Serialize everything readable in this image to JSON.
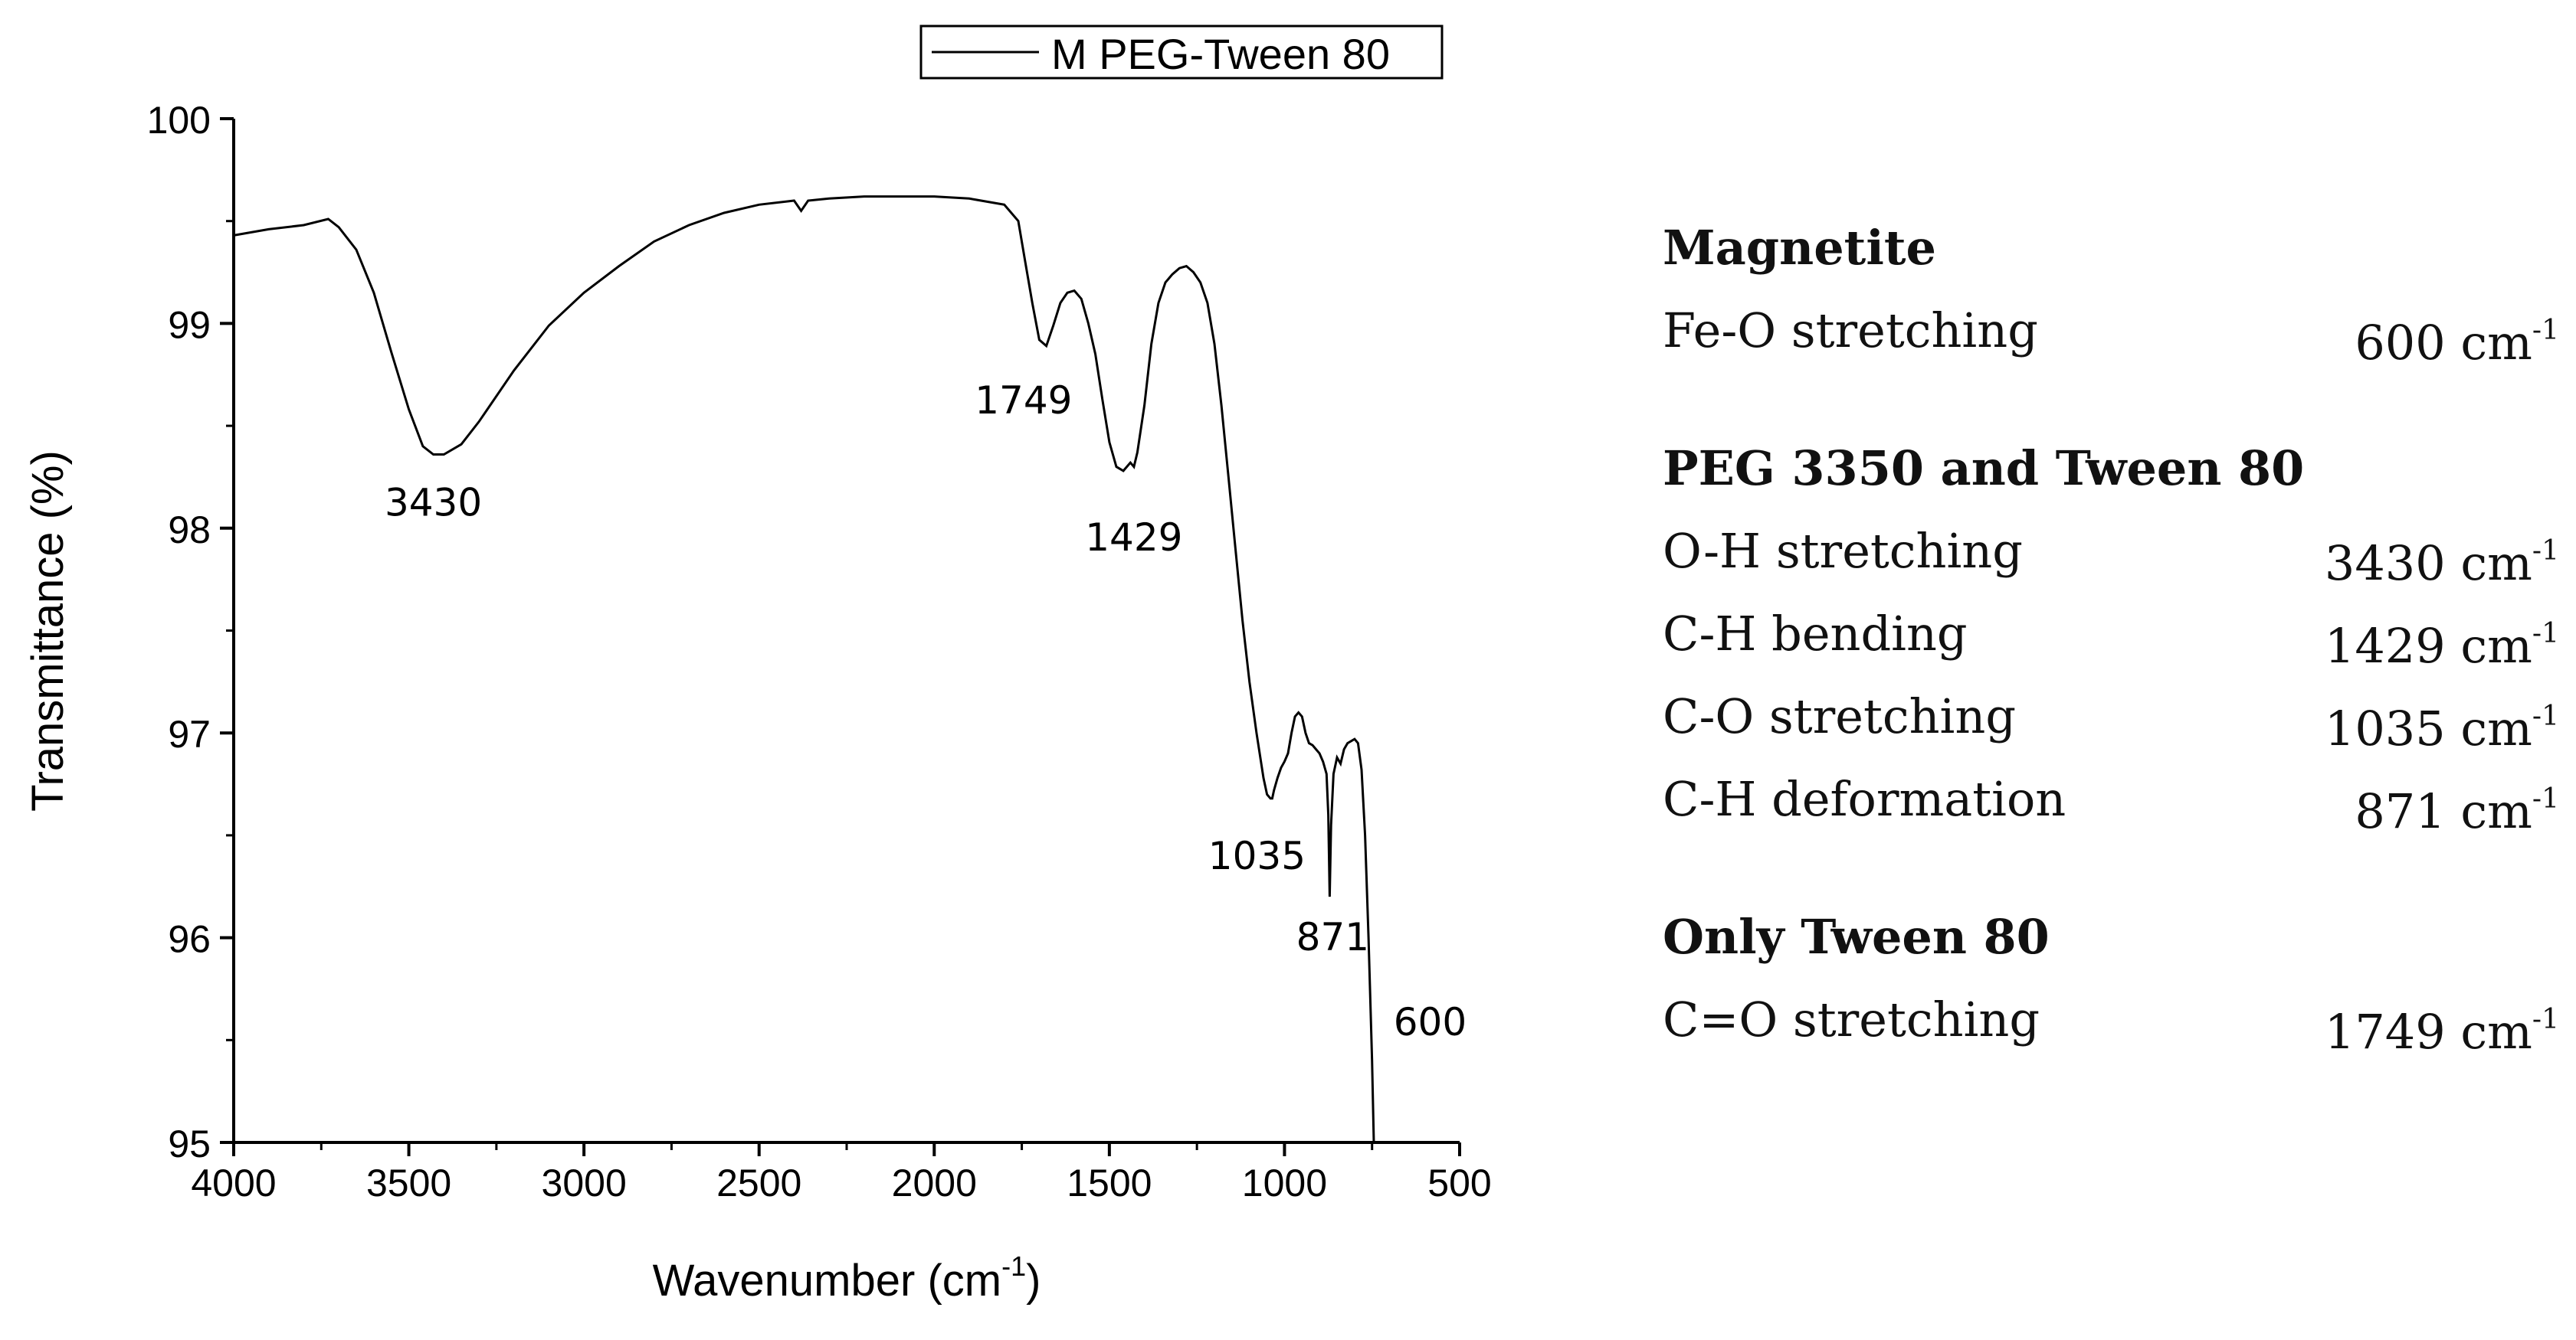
{
  "chart_data": {
    "type": "line",
    "xlabel": "Wavenumber (cm",
    "xlabel_sup": "-1",
    "xlabel_suffix": ")",
    "ylabel": "Transmittance (%)",
    "xlim": [
      4000,
      500
    ],
    "ylim": [
      95,
      100
    ],
    "xticks": [
      4000,
      3500,
      3000,
      2500,
      2000,
      1500,
      1000,
      500
    ],
    "yticks": [
      95,
      96,
      97,
      98,
      99,
      100
    ],
    "legend": "M PEG-Tween 80",
    "series": [
      {
        "name": "M PEG-Tween 80",
        "x": [
          4000,
          3900,
          3800,
          3730,
          3700,
          3650,
          3600,
          3550,
          3500,
          3460,
          3430,
          3400,
          3350,
          3300,
          3200,
          3100,
          3000,
          2900,
          2800,
          2700,
          2600,
          2500,
          2400,
          2380,
          2360,
          2300,
          2200,
          2100,
          2000,
          1900,
          1800,
          1760,
          1740,
          1720,
          1700,
          1680,
          1660,
          1640,
          1620,
          1600,
          1580,
          1560,
          1540,
          1520,
          1500,
          1480,
          1460,
          1440,
          1430,
          1420,
          1400,
          1380,
          1360,
          1340,
          1320,
          1300,
          1280,
          1260,
          1240,
          1220,
          1200,
          1180,
          1160,
          1140,
          1120,
          1100,
          1080,
          1060,
          1050,
          1040,
          1035,
          1030,
          1020,
          1010,
          1000,
          990,
          980,
          970,
          960,
          950,
          940,
          930,
          920,
          910,
          900,
          890,
          880,
          875,
          871,
          867,
          860,
          850,
          840,
          830,
          820,
          800,
          790,
          780,
          770,
          760,
          750,
          745
        ],
        "y": [
          99.43,
          99.46,
          99.48,
          99.51,
          99.47,
          99.36,
          99.15,
          98.86,
          98.58,
          98.4,
          98.36,
          98.36,
          98.41,
          98.52,
          98.77,
          98.99,
          99.15,
          99.28,
          99.4,
          99.48,
          99.54,
          99.58,
          99.6,
          99.55,
          99.6,
          99.61,
          99.62,
          99.62,
          99.62,
          99.61,
          99.58,
          99.5,
          99.3,
          99.1,
          98.92,
          98.89,
          98.99,
          99.1,
          99.15,
          99.16,
          99.12,
          99.0,
          98.85,
          98.63,
          98.42,
          98.3,
          98.28,
          98.32,
          98.3,
          98.37,
          98.6,
          98.9,
          99.1,
          99.2,
          99.24,
          99.27,
          99.28,
          99.25,
          99.2,
          99.1,
          98.9,
          98.6,
          98.25,
          97.9,
          97.55,
          97.25,
          97.0,
          96.78,
          96.7,
          96.68,
          96.68,
          96.72,
          96.78,
          96.83,
          96.86,
          96.9,
          97.0,
          97.08,
          97.1,
          97.08,
          97.0,
          96.95,
          96.94,
          96.92,
          96.9,
          96.86,
          96.8,
          96.6,
          96.2,
          96.55,
          96.8,
          96.88,
          96.85,
          96.92,
          96.95,
          96.97,
          96.95,
          96.82,
          96.5,
          96.0,
          95.4,
          95.0
        ],
        "color": "#000000"
      }
    ],
    "annotations": [
      {
        "text": "3430",
        "x": 3430,
        "y": 98.36
      },
      {
        "text": "1749",
        "x": 1640,
        "y": 98.89
      },
      {
        "text": "1429",
        "x": 1430,
        "y": 98.28
      },
      {
        "text": "1035",
        "x": 1035,
        "y": 96.68
      },
      {
        "text": "871",
        "x": 871,
        "y": 96.2
      },
      {
        "text": "600",
        "x": 750,
        "y": 95.0
      }
    ]
  },
  "table": {
    "groups": [
      {
        "title": "Magnetite",
        "rows": [
          {
            "label": "Fe-O stretching",
            "value": "600 cm",
            "sup": "-1"
          }
        ]
      },
      {
        "title": "PEG 3350 and Tween 80",
        "rows": [
          {
            "label": "O-H stretching",
            "value": "3430 cm",
            "sup": "-1"
          },
          {
            "label": "C-H bending",
            "value": "1429 cm",
            "sup": "-1"
          },
          {
            "label": "C-O stretching",
            "value": "1035 cm",
            "sup": "-1"
          },
          {
            "label": "C-H deformation",
            "value": "871 cm",
            "sup": "-1"
          }
        ]
      },
      {
        "title": "Only Tween 80",
        "rows": [
          {
            "label": "C=O stretching",
            "value": "1749 cm",
            "sup": "-1"
          }
        ]
      }
    ]
  }
}
